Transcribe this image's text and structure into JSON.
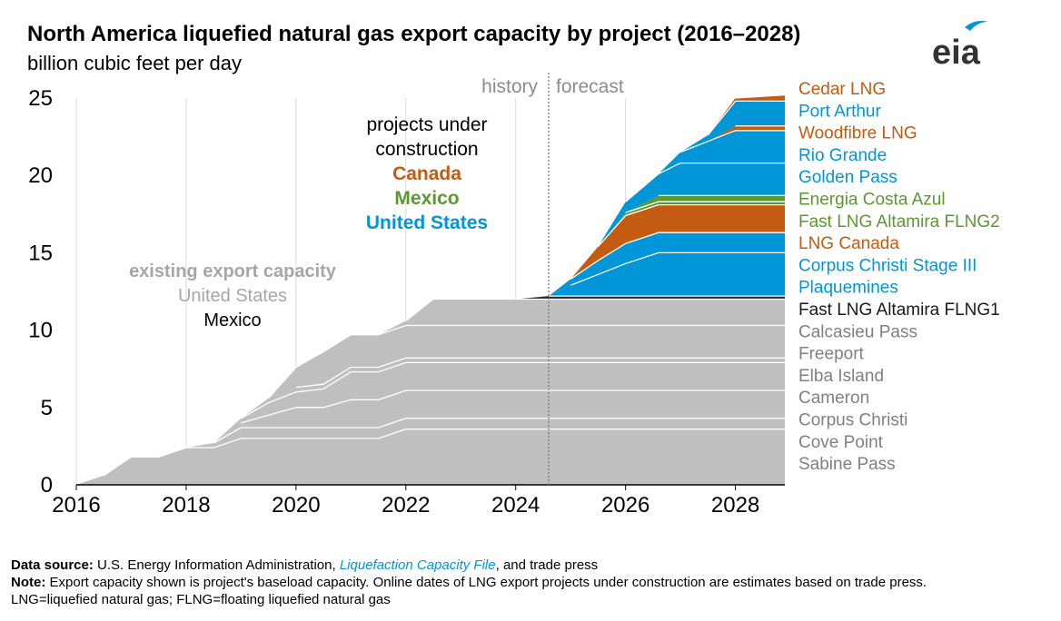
{
  "header": {
    "title": "North America liquefied natural gas export capacity by project (2016–2028)",
    "subtitle": "billion cubic feet per day",
    "logo_text": "eia"
  },
  "footer": {
    "source_label": "Data source:",
    "source_text_1": "U.S. Energy Information Administration, ",
    "source_link": "Liquefaction Capacity File",
    "source_text_2": ", and trade press",
    "note_label": "Note:",
    "note_text": "Export capacity shown is project's baseload capacity. Online dates of LNG export projects under construction are estimates based on trade press.",
    "abbrev_text": "LNG=liquefied natural gas; FLNG=floating liquefied natural gas"
  },
  "colors": {
    "existing": "#bfbfbf",
    "united_states": "#0096d7",
    "canada": "#c55a11",
    "mexico": "#5d9732",
    "grid": "#d9d9d9",
    "separator": "#ffffff"
  },
  "chart_data": {
    "type": "area",
    "stacked": true,
    "xlim": [
      2016,
      2028.9
    ],
    "ylim": [
      0,
      25
    ],
    "x_ticks": [
      "2016",
      "2018",
      "2020",
      "2022",
      "2024",
      "2026",
      "2028"
    ],
    "y_ticks": [
      "0",
      "5",
      "10",
      "15",
      "20",
      "25"
    ],
    "grid": "vertical",
    "divider": {
      "x": 2024.6,
      "left_label": "history",
      "right_label": "forecast"
    },
    "annotations": {
      "existing": {
        "title": "existing export capacity",
        "line1": "United States",
        "line2": "Mexico"
      },
      "construction": {
        "line1": "projects under",
        "line2": "construction",
        "canada": "Canada",
        "mexico": "Mexico",
        "united_states": "United States"
      }
    },
    "x": [
      2016,
      2016.5,
      2017,
      2017.5,
      2018,
      2018.5,
      2019,
      2019.5,
      2020,
      2020.5,
      2021,
      2021.5,
      2022,
      2022.5,
      2023,
      2023.5,
      2024,
      2024.6,
      2025,
      2025.5,
      2026,
      2026.6,
      2027,
      2027.5,
      2028,
      2028.9
    ],
    "series": [
      {
        "name": "Sabine Pass",
        "group": "existing",
        "values": [
          0,
          0.6,
          1.8,
          1.8,
          2.4,
          2.4,
          3,
          3,
          3,
          3,
          3,
          3,
          3.6,
          3.6,
          3.6,
          3.6,
          3.6,
          3.6,
          3.6,
          3.6,
          3.6,
          3.6,
          3.6,
          3.6,
          3.6,
          3.6
        ]
      },
      {
        "name": "Cove Point",
        "group": "existing",
        "values": [
          0,
          0,
          0,
          0,
          0,
          0.3,
          0.7,
          0.7,
          0.7,
          0.7,
          0.7,
          0.7,
          0.7,
          0.7,
          0.7,
          0.7,
          0.7,
          0.7,
          0.7,
          0.7,
          0.7,
          0.7,
          0.7,
          0.7,
          0.7,
          0.7
        ]
      },
      {
        "name": "Corpus Christi",
        "group": "existing",
        "values": [
          0,
          0,
          0,
          0,
          0,
          0,
          0.3,
          0.8,
          1.3,
          1.3,
          1.8,
          1.8,
          1.8,
          1.8,
          1.8,
          1.8,
          1.8,
          1.8,
          1.8,
          1.8,
          1.8,
          1.8,
          1.8,
          1.8,
          1.8,
          1.8
        ]
      },
      {
        "name": "Cameron",
        "group": "existing",
        "values": [
          0,
          0,
          0,
          0,
          0,
          0,
          0.3,
          0.8,
          1,
          1.2,
          1.8,
          1.8,
          1.8,
          1.8,
          1.8,
          1.8,
          1.8,
          1.8,
          1.8,
          1.8,
          1.8,
          1.8,
          1.8,
          1.8,
          1.8,
          1.8
        ]
      },
      {
        "name": "Elba Island",
        "group": "existing",
        "values": [
          0,
          0,
          0,
          0,
          0,
          0,
          0,
          0,
          0.3,
          0.3,
          0.3,
          0.3,
          0.3,
          0.3,
          0.3,
          0.3,
          0.3,
          0.3,
          0.3,
          0.3,
          0.3,
          0.3,
          0.3,
          0.3,
          0.3,
          0.3
        ]
      },
      {
        "name": "Freeport",
        "group": "existing",
        "values": [
          0,
          0,
          0,
          0,
          0,
          0,
          0,
          0.3,
          1.3,
          2.1,
          2.1,
          2.1,
          2.1,
          2.1,
          2.1,
          2.1,
          2.1,
          2.1,
          2.1,
          2.1,
          2.1,
          2.1,
          2.1,
          2.1,
          2.1,
          2.1
        ]
      },
      {
        "name": "Calcasieu Pass",
        "group": "existing",
        "values": [
          0,
          0,
          0,
          0,
          0,
          0,
          0,
          0,
          0,
          0,
          0,
          0,
          0.3,
          1.7,
          1.7,
          1.7,
          1.7,
          1.7,
          1.7,
          1.7,
          1.7,
          1.7,
          1.7,
          1.7,
          1.7,
          1.7
        ]
      },
      {
        "name": "Fast LNG Altamira FLNG1",
        "group": "mexico_existing",
        "values": [
          0,
          0,
          0,
          0,
          0,
          0,
          0,
          0,
          0,
          0,
          0,
          0,
          0,
          0,
          0,
          0,
          0,
          0.2,
          0.2,
          0.2,
          0.2,
          0.2,
          0.2,
          0.2,
          0.2,
          0.2
        ]
      },
      {
        "name": "Plaquemines",
        "group": "united_states",
        "values": [
          0,
          0,
          0,
          0,
          0,
          0,
          0,
          0,
          0,
          0,
          0,
          0,
          0,
          0,
          0,
          0,
          0,
          0,
          0.7,
          1.4,
          2.1,
          2.8,
          2.8,
          2.8,
          2.8,
          2.8
        ]
      },
      {
        "name": "Corpus Christi Stage III",
        "group": "united_states",
        "values": [
          0,
          0,
          0,
          0,
          0,
          0,
          0,
          0,
          0,
          0,
          0,
          0,
          0,
          0,
          0,
          0,
          0,
          0,
          0.4,
          0.9,
          1.3,
          1.3,
          1.3,
          1.3,
          1.3,
          1.3
        ]
      },
      {
        "name": "LNG Canada",
        "group": "canada",
        "values": [
          0,
          0,
          0,
          0,
          0,
          0,
          0,
          0,
          0,
          0,
          0,
          0,
          0,
          0,
          0,
          0,
          0,
          0,
          0,
          0.9,
          1.8,
          1.8,
          1.8,
          1.8,
          1.8,
          1.8
        ]
      },
      {
        "name": "Fast LNG Altamira FLNG2",
        "group": "mexico",
        "values": [
          0,
          0,
          0,
          0,
          0,
          0,
          0,
          0,
          0,
          0,
          0,
          0,
          0,
          0,
          0,
          0,
          0,
          0,
          0,
          0,
          0.2,
          0.2,
          0.2,
          0.2,
          0.2,
          0.2
        ]
      },
      {
        "name": "Energia Costa Azul",
        "group": "mexico",
        "values": [
          0,
          0,
          0,
          0,
          0,
          0,
          0,
          0,
          0,
          0,
          0,
          0,
          0,
          0,
          0,
          0,
          0,
          0,
          0,
          0,
          0,
          0.4,
          0.4,
          0.4,
          0.4,
          0.4
        ]
      },
      {
        "name": "Golden Pass",
        "group": "united_states",
        "values": [
          0,
          0,
          0,
          0,
          0,
          0,
          0,
          0,
          0,
          0,
          0,
          0,
          0,
          0,
          0,
          0,
          0,
          0,
          0,
          0,
          0.7,
          1.4,
          2.1,
          2.1,
          2.1,
          2.1
        ]
      },
      {
        "name": "Rio Grande",
        "group": "united_states",
        "values": [
          0,
          0,
          0,
          0,
          0,
          0,
          0,
          0,
          0,
          0,
          0,
          0,
          0,
          0,
          0,
          0,
          0,
          0,
          0,
          0,
          0,
          0,
          0.7,
          1.4,
          2.1,
          2.1
        ]
      },
      {
        "name": "Woodfibre LNG",
        "group": "canada",
        "values": [
          0,
          0,
          0,
          0,
          0,
          0,
          0,
          0,
          0,
          0,
          0,
          0,
          0,
          0,
          0,
          0,
          0,
          0,
          0,
          0,
          0,
          0,
          0,
          0,
          0.3,
          0.3
        ]
      },
      {
        "name": "Port Arthur",
        "group": "united_states",
        "values": [
          0,
          0,
          0,
          0,
          0,
          0,
          0,
          0,
          0,
          0,
          0,
          0,
          0,
          0,
          0,
          0,
          0,
          0,
          0,
          0,
          0,
          0,
          0,
          0.4,
          1.6,
          1.6
        ]
      },
      {
        "name": "Cedar LNG",
        "group": "canada",
        "values": [
          0,
          0,
          0,
          0,
          0,
          0,
          0,
          0,
          0,
          0,
          0,
          0,
          0,
          0,
          0,
          0,
          0,
          0,
          0,
          0,
          0,
          0,
          0,
          0,
          0.2,
          0.4
        ]
      }
    ],
    "legend": [
      {
        "name": "Cedar LNG",
        "group": "canada"
      },
      {
        "name": "Port Arthur",
        "group": "united_states"
      },
      {
        "name": "Woodfibre LNG",
        "group": "canada"
      },
      {
        "name": "Rio Grande",
        "group": "united_states"
      },
      {
        "name": "Golden Pass",
        "group": "united_states"
      },
      {
        "name": "Energia Costa Azul",
        "group": "mexico"
      },
      {
        "name": "Fast LNG Altamira FLNG2",
        "group": "mexico"
      },
      {
        "name": "LNG Canada",
        "group": "canada"
      },
      {
        "name": "Corpus Christi Stage III",
        "group": "united_states"
      },
      {
        "name": "Plaquemines",
        "group": "united_states"
      },
      {
        "name": "Fast LNG Altamira FLNG1",
        "group": "mexico_existing"
      },
      {
        "name": "Calcasieu Pass",
        "group": "existing"
      },
      {
        "name": "Freeport",
        "group": "existing"
      },
      {
        "name": "Elba Island",
        "group": "existing"
      },
      {
        "name": "Cameron",
        "group": "existing"
      },
      {
        "name": "Corpus Christi",
        "group": "existing"
      },
      {
        "name": "Cove Point",
        "group": "existing"
      },
      {
        "name": "Sabine Pass",
        "group": "existing"
      }
    ]
  }
}
